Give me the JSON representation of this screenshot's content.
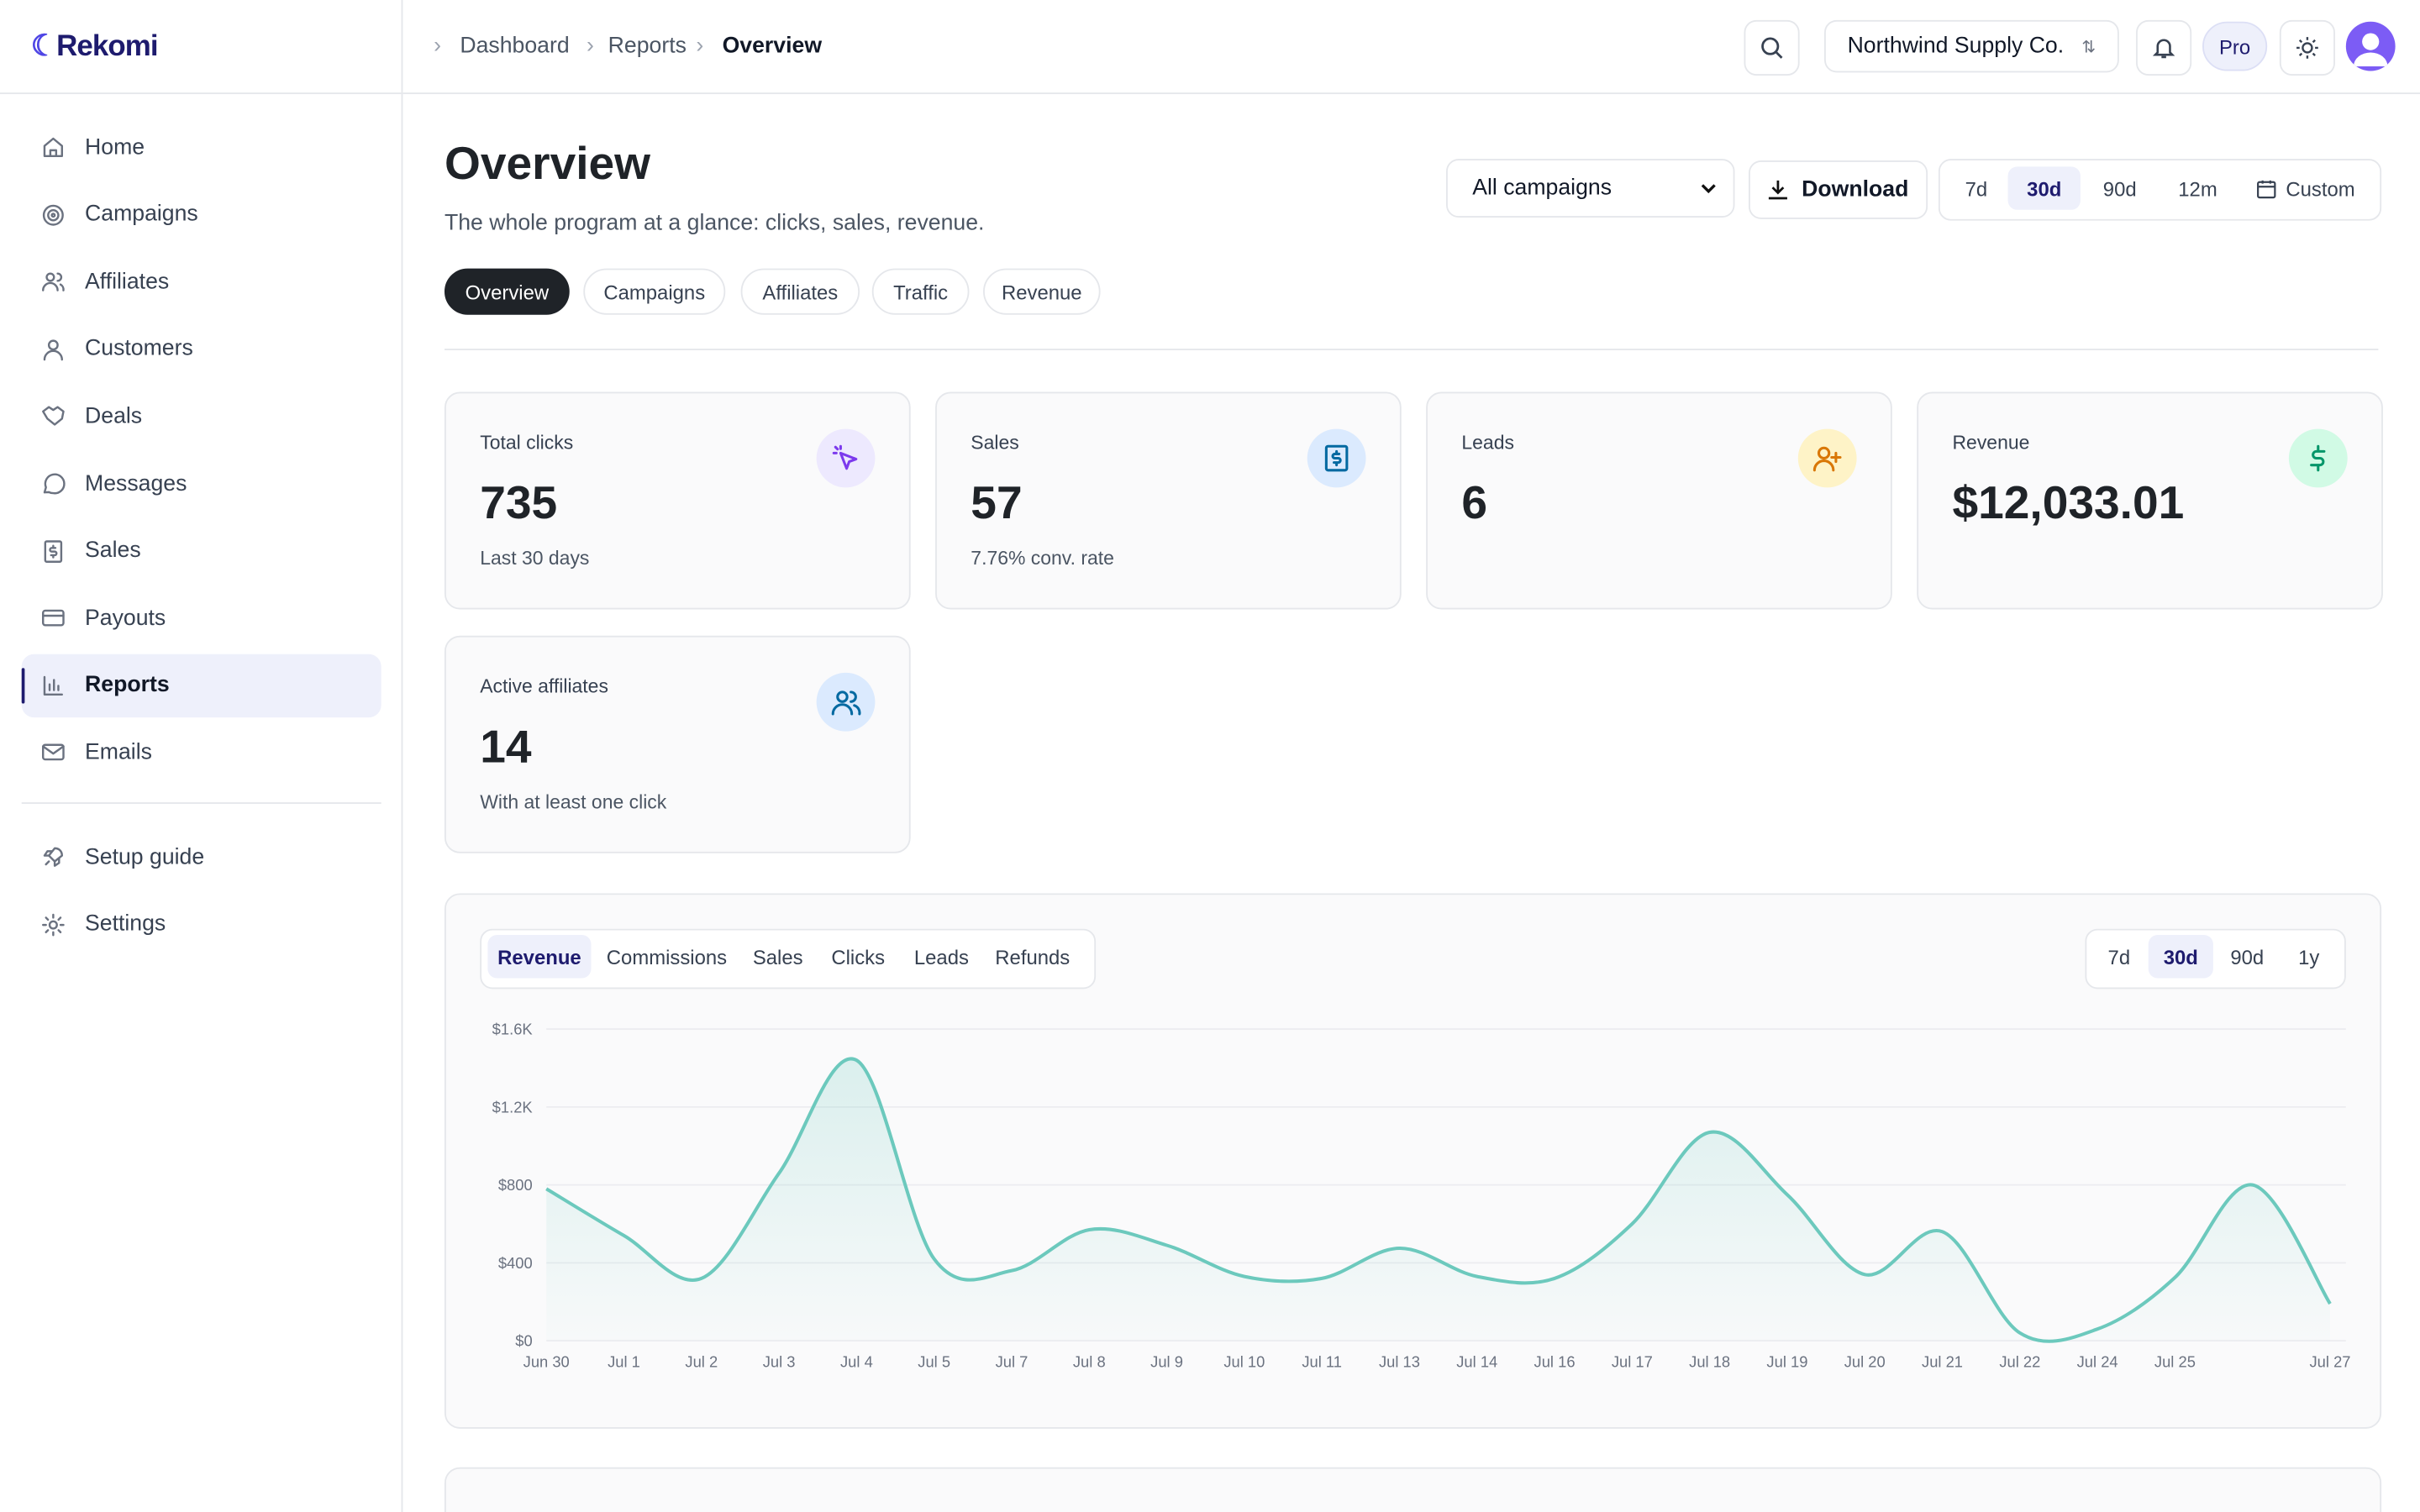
{
  "brand": "Rekomi",
  "breadcrumb": [
    "Dashboard",
    "Reports",
    "Overview"
  ],
  "org": "Northwind Supply Co.",
  "plan": "Pro",
  "nav": [
    "Home",
    "Campaigns",
    "Affiliates",
    "Customers",
    "Deals",
    "Messages",
    "Sales",
    "Payouts",
    "Reports",
    "Emails"
  ],
  "nav_footer": [
    "Setup guide",
    "Settings"
  ],
  "page": {
    "title": "Overview",
    "subtitle": "The whole program at a glance: clicks, sales, revenue."
  },
  "filters": {
    "campaign": "All campaigns",
    "download": "Download",
    "ranges": [
      "7d",
      "30d",
      "90d",
      "12m",
      "Custom"
    ]
  },
  "tabs": [
    "Overview",
    "Campaigns",
    "Affiliates",
    "Traffic",
    "Revenue"
  ],
  "kpis": [
    {
      "label": "Total clicks",
      "value": 735,
      "note": "Last 30 days"
    },
    {
      "label": "Sales",
      "value": 57,
      "note": "7.76% conv. rate"
    },
    {
      "label": "Leads",
      "value": 6
    },
    {
      "label": "Revenue",
      "value": "$12,033.01"
    },
    {
      "label": "Active affiliates",
      "value": 14,
      "note": "With at least one click"
    }
  ],
  "chart_tabs": [
    "Revenue",
    "Commissions",
    "Sales",
    "Clicks",
    "Leads",
    "Refunds"
  ],
  "chart_ranges": [
    "7d",
    "30d",
    "90d",
    "1y"
  ],
  "chart_data": {
    "type": "line",
    "categories": [
      "Jun 30",
      "Jul 1",
      "Jul 2",
      "Jul 3",
      "Jul 4",
      "Jul 5",
      "Jul 7",
      "Jul 8",
      "Jul 9",
      "Jul 10",
      "Jul 11",
      "Jul 13",
      "Jul 14",
      "Jul 16",
      "Jul 17",
      "Jul 18",
      "Jul 19",
      "Jul 20",
      "Jul 21",
      "Jul 22",
      "Jul 24",
      "Jul 25",
      null,
      "Jul 27"
    ],
    "series": [
      {
        "name": "Revenue",
        "color": "#6cc9bd",
        "values": [
          780,
          540,
          320,
          860,
          1440,
          420,
          360,
          570,
          490,
          330,
          320,
          475,
          330,
          320,
          600,
          1070,
          750,
          340,
          560,
          40,
          60,
          325,
          800,
          190
        ]
      }
    ],
    "ylim": [
      0,
      1600
    ],
    "yticks": [
      {
        "value": 0,
        "label": "$0"
      },
      {
        "value": 400,
        "label": "$400"
      },
      {
        "value": 800,
        "label": "$800"
      },
      {
        "value": 1200,
        "label": "$1.2K"
      },
      {
        "value": 1600,
        "label": "$1.6K"
      }
    ],
    "grid": true
  }
}
